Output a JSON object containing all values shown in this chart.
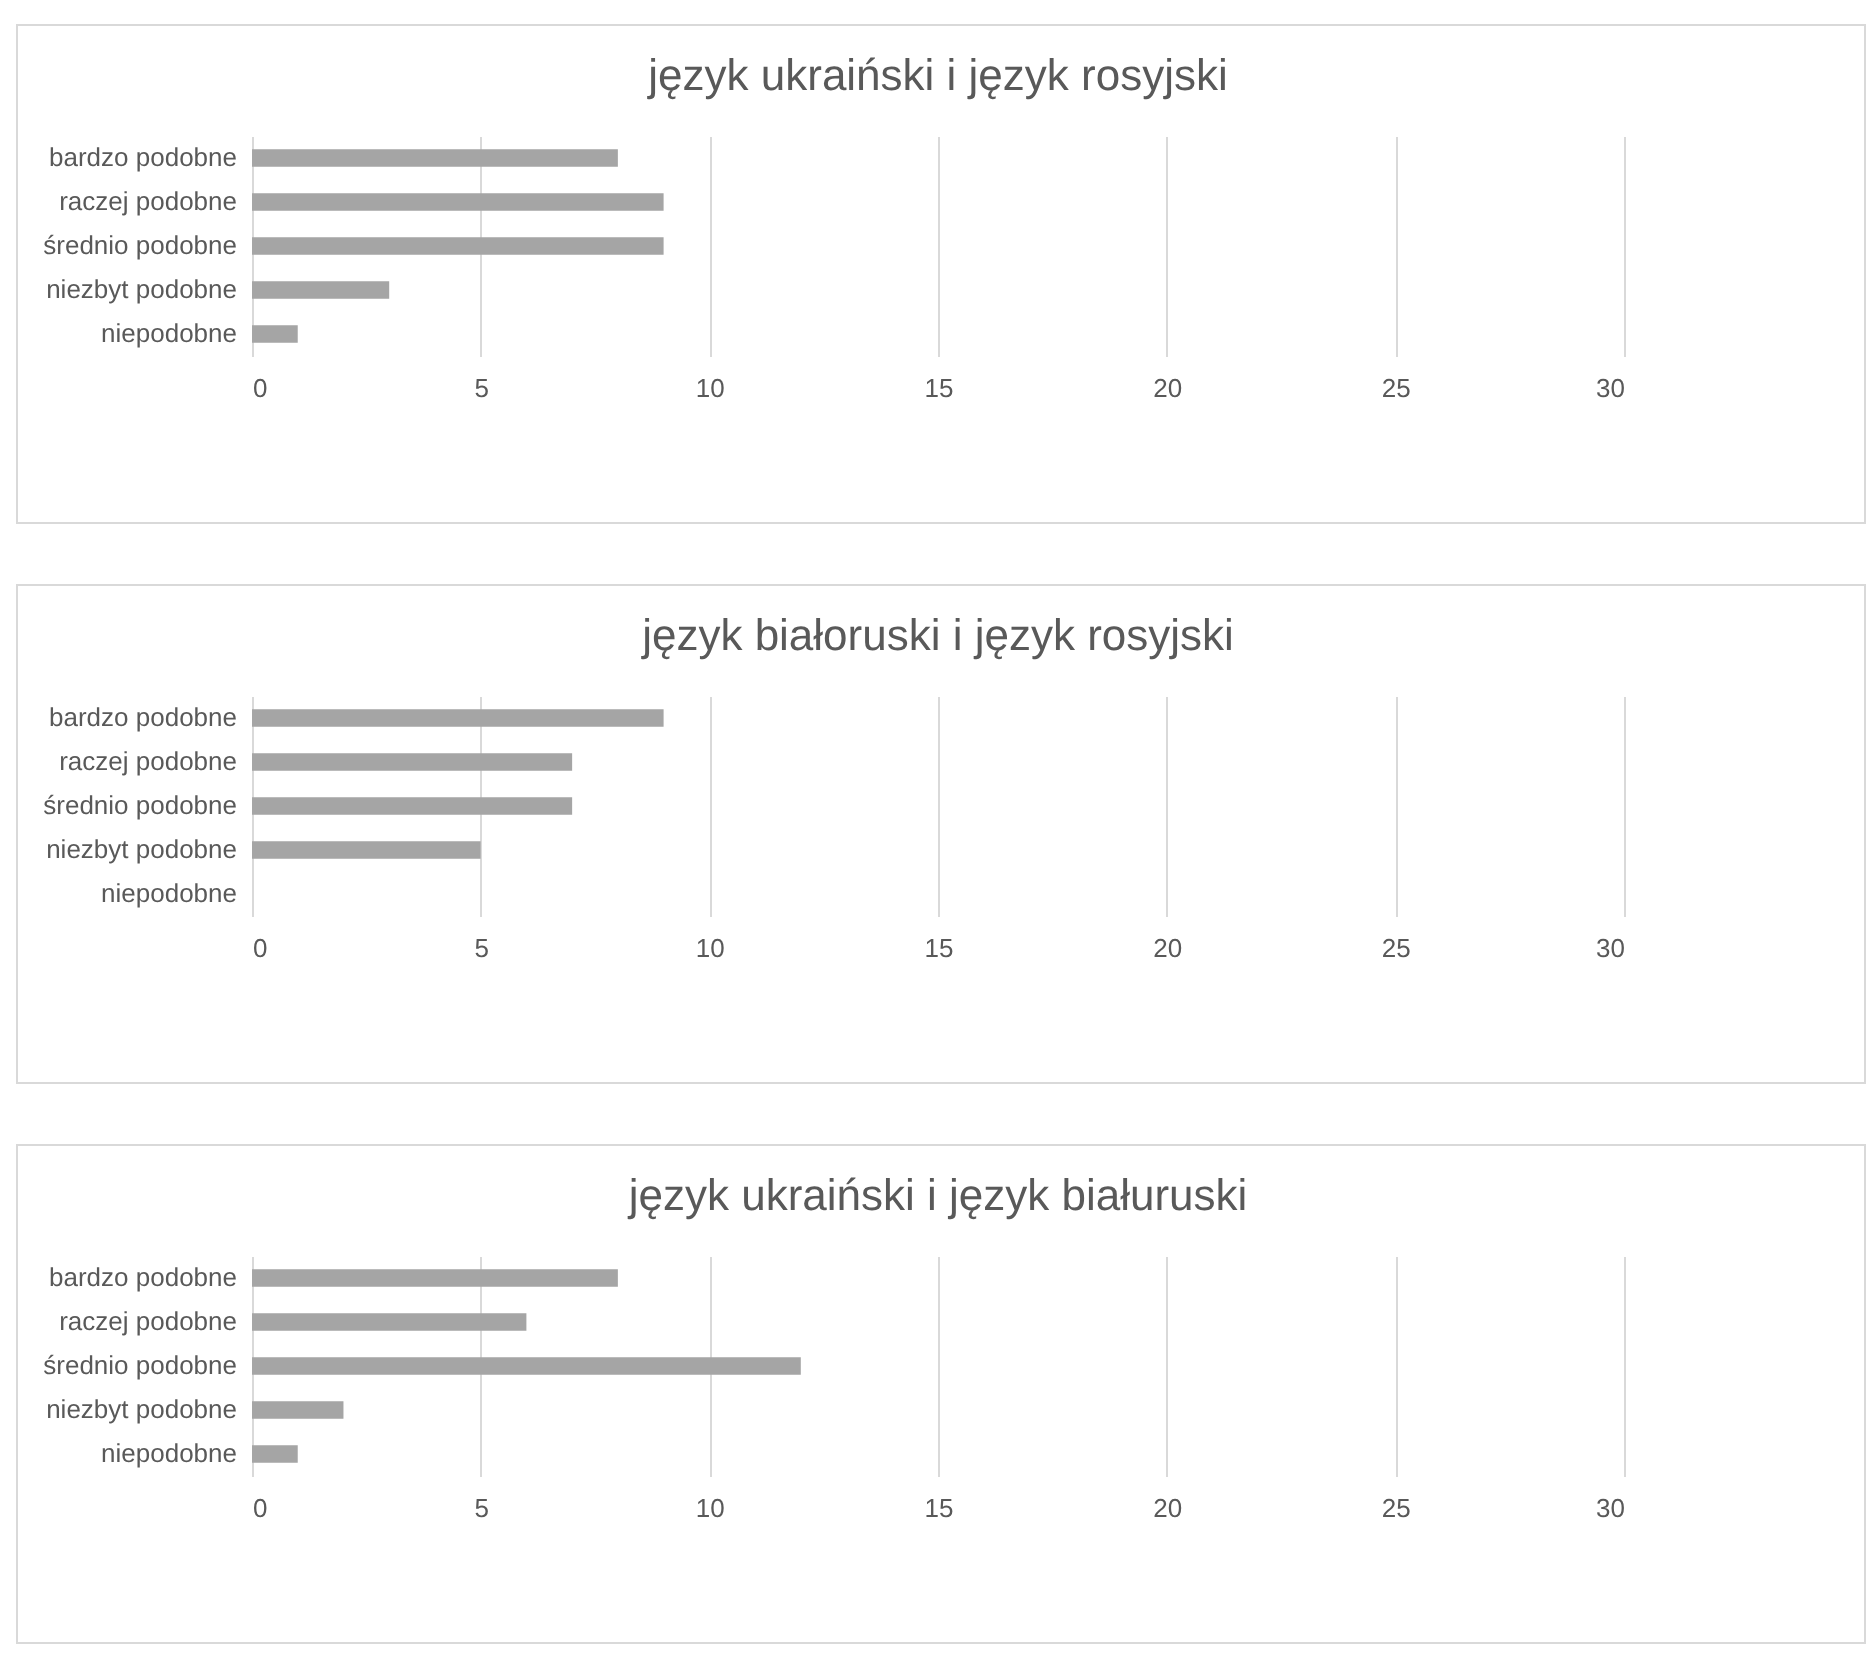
{
  "chart_data": [
    {
      "type": "bar",
      "orientation": "horizontal",
      "title": "język ukraiński i język rosyjski",
      "categories": [
        "bardzo podobne",
        "raczej podobne",
        "średnio podobne",
        "niezbyt podobne",
        "niepodobne"
      ],
      "values": [
        8,
        9,
        9,
        3,
        1
      ],
      "color": "#a5a5a5",
      "xlim": [
        0,
        30
      ],
      "xticks": [
        0,
        5,
        10,
        15,
        20,
        25,
        30
      ],
      "grid": "x"
    },
    {
      "type": "bar",
      "orientation": "horizontal",
      "title": "język białoruski i język rosyjski",
      "categories": [
        "bardzo podobne",
        "raczej podobne",
        "średnio podobne",
        "niezbyt podobne",
        "niepodobne"
      ],
      "values": [
        9,
        7,
        7,
        5,
        0
      ],
      "color": "#a5a5a5",
      "xlim": [
        0,
        30
      ],
      "xticks": [
        0,
        5,
        10,
        15,
        20,
        25,
        30
      ],
      "grid": "x"
    },
    {
      "type": "bar",
      "orientation": "horizontal",
      "title": "język ukraiński i język białuruski",
      "categories": [
        "bardzo podobne",
        "raczej podobne",
        "średnio podobne",
        "niezbyt podobne",
        "niepodobne"
      ],
      "values": [
        8,
        6,
        12,
        2,
        1
      ],
      "color": "#a5a5a5",
      "xlim": [
        0,
        30
      ],
      "xticks": [
        0,
        5,
        10,
        15,
        20,
        25,
        30
      ],
      "grid": "x"
    }
  ]
}
